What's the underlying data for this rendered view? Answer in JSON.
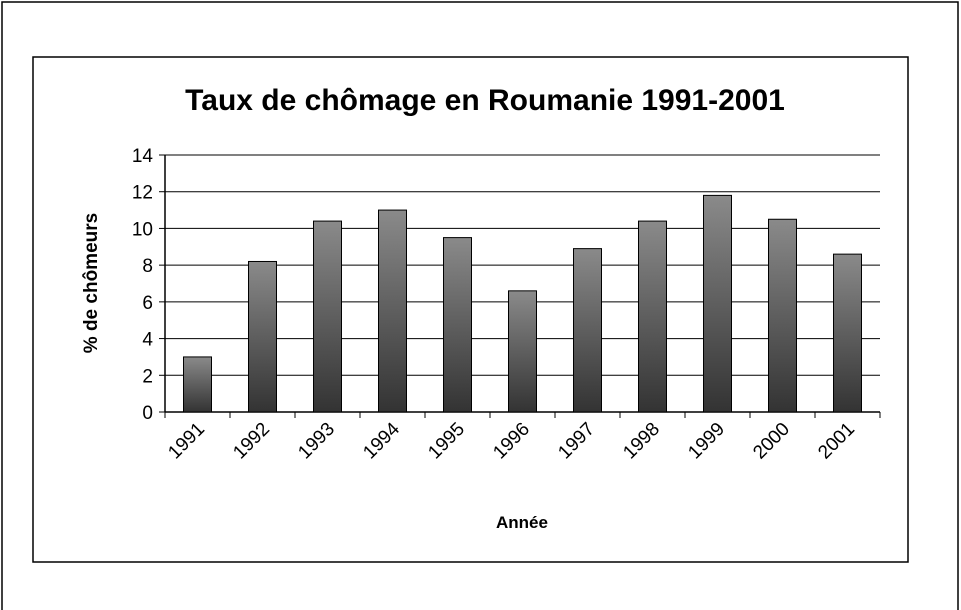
{
  "chart_data": {
    "type": "bar",
    "title": "Taux de chômage en Roumanie 1991-2001",
    "x_label": "Année",
    "y_label": "% de chômeurs",
    "categories": [
      "1991",
      "1992",
      "1993",
      "1994",
      "1995",
      "1996",
      "1997",
      "1998",
      "1999",
      "2000",
      "2001"
    ],
    "values": [
      3.0,
      8.2,
      10.4,
      11.0,
      9.5,
      6.6,
      8.9,
      10.4,
      11.8,
      10.5,
      8.6
    ],
    "ylim": [
      0,
      14
    ],
    "yticks": [
      0,
      2,
      4,
      6,
      8,
      10,
      12,
      14
    ],
    "grid": true
  }
}
